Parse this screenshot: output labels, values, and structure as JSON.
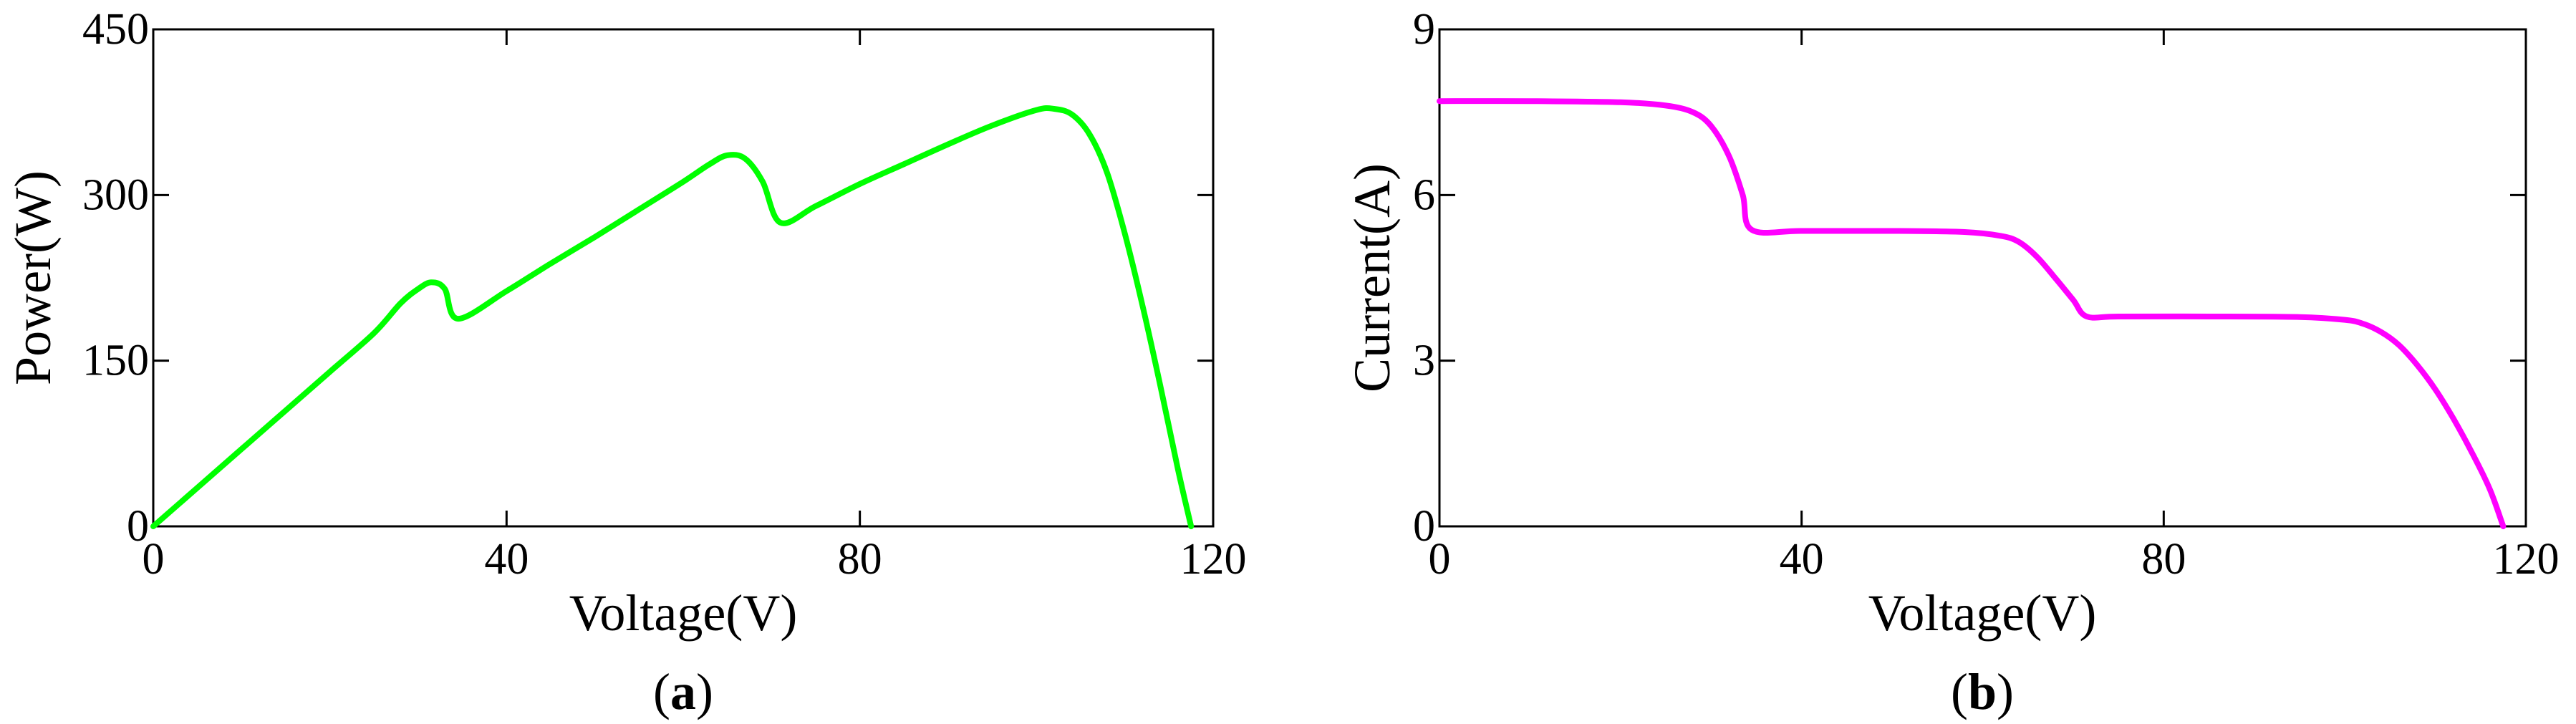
{
  "chart_data": [
    {
      "type": "line",
      "panel_label": "a",
      "title": "",
      "xlabel": "Voltage(V)",
      "ylabel": "Power(W)",
      "xlim": [
        0,
        120
      ],
      "ylim": [
        0,
        450
      ],
      "xticks": [
        0,
        40,
        80,
        120
      ],
      "yticks": [
        0,
        150,
        300,
        450
      ],
      "grid": false,
      "legend": "none",
      "series": [
        {
          "color": "#00ff00",
          "x": [
            0,
            5,
            10,
            15,
            20,
            25,
            28,
            30,
            31.5,
            33,
            34.5,
            40,
            45,
            50,
            55,
            60,
            63,
            65,
            67,
            69,
            71,
            75,
            80,
            85,
            90,
            95,
            100,
            102,
            104,
            106,
            108,
            110,
            112,
            114,
            116,
            117.5
          ],
          "y": [
            0,
            35,
            70,
            105,
            140,
            175,
            202,
            215,
            221,
            215,
            188,
            213,
            238,
            262,
            287,
            312,
            328,
            336,
            333,
            312,
            275,
            290,
            310,
            328,
            346,
            363,
            377,
            378,
            373,
            355,
            320,
            265,
            200,
            128,
            52,
            0
          ]
        }
      ]
    },
    {
      "type": "line",
      "panel_label": "b",
      "title": "",
      "xlabel": "Voltage(V)",
      "ylabel": "Current(A)",
      "xlim": [
        0,
        120
      ],
      "ylim": [
        0,
        9
      ],
      "xticks": [
        0,
        40,
        80,
        120
      ],
      "yticks": [
        0,
        3,
        6,
        9
      ],
      "grid": false,
      "legend": "none",
      "series": [
        {
          "color": "#ff00ff",
          "x": [
            0,
            10,
            20,
            25,
            28,
            30,
            32,
            33.5,
            34.5,
            40,
            50,
            58,
            62,
            64,
            66,
            68,
            70,
            71.5,
            75,
            85,
            95,
            100,
            102,
            104,
            106,
            108,
            110,
            112,
            114,
            116,
            117.5
          ],
          "y": [
            7.7,
            7.7,
            7.68,
            7.62,
            7.5,
            7.25,
            6.7,
            6.0,
            5.37,
            5.35,
            5.35,
            5.33,
            5.26,
            5.15,
            4.88,
            4.5,
            4.1,
            3.8,
            3.8,
            3.8,
            3.79,
            3.74,
            3.67,
            3.52,
            3.28,
            2.92,
            2.48,
            1.95,
            1.35,
            0.68,
            0
          ]
        }
      ]
    }
  ]
}
